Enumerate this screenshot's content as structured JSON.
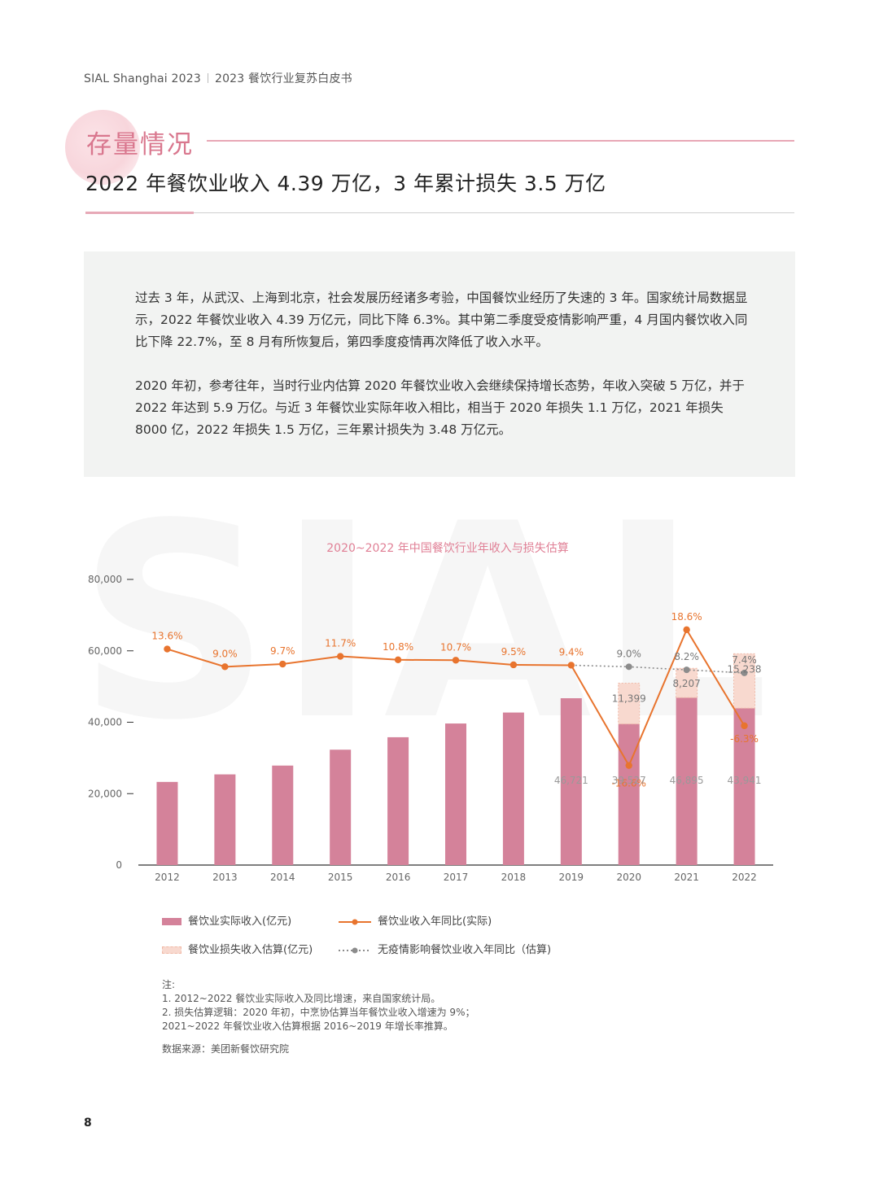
{
  "header": {
    "brand": "SIAL Shanghai 2023",
    "doc_title": "2023 餐饮行业复苏白皮书"
  },
  "section": {
    "title": "存量情况",
    "headline": "2022 年餐饮业收入 4.39 万亿，3 年累计损失 3.5 万亿"
  },
  "intro": {
    "p1": "过去 3 年，从武汉、上海到北京，社会发展历经诸多考验，中国餐饮业经历了失速的 3 年。国家统计局数据显示，2022 年餐饮业收入 4.39 万亿元，同比下降 6.3%。其中第二季度受疫情影响严重，4 月国内餐饮收入同比下降 22.7%，至 8 月有所恢复后，第四季度疫情再次降低了收入水平。",
    "p2": "2020 年初，参考往年，当时行业内估算 2020 年餐饮业收入会继续保持增长态势，年收入突破 5 万亿，并于 2022 年达到 5.9 万亿。与近 3 年餐饮业实际年收入相比，相当于 2020 年损失 1.1 万亿，2021 年损失 8000 亿，2022 年损失 1.5 万亿，三年累计损失为 3.48 万亿元。"
  },
  "watermark": "SIAL",
  "chart_data": {
    "type": "bar",
    "title": "2020~2022 年中国餐饮行业年收入与损失估算",
    "categories": [
      "2012",
      "2013",
      "2014",
      "2015",
      "2016",
      "2017",
      "2018",
      "2019",
      "2020",
      "2021",
      "2022"
    ],
    "ylim": [
      0,
      80000
    ],
    "yticks": [
      "0",
      "20,000",
      "40,000",
      "60,000",
      "80,000"
    ],
    "series": [
      {
        "name": "餐饮业实际收入(亿元)",
        "type": "bar",
        "values": [
          23283,
          25392,
          27860,
          32310,
          35799,
          39644,
          42716,
          46721,
          39527,
          46895,
          43941
        ],
        "labels": [
          "",
          "",
          "",
          "",
          "",
          "",
          "",
          "46,721",
          "39,527",
          "46,895",
          "43,941"
        ]
      },
      {
        "name": "餐饮业损失收入估算(亿元)",
        "type": "bar-stacked",
        "values": [
          null,
          null,
          null,
          null,
          null,
          null,
          null,
          null,
          11399,
          8207,
          15238
        ],
        "labels": [
          "",
          "",
          "",
          "",
          "",
          "",
          "",
          "",
          "11,399",
          "8,207",
          "15,238"
        ]
      },
      {
        "name": "餐饮业收入年同比(实际)",
        "type": "line",
        "values": [
          13.6,
          9.0,
          9.7,
          11.7,
          10.8,
          10.7,
          9.5,
          9.4,
          -16.6,
          18.6,
          -6.3
        ],
        "labels": [
          "13.6%",
          "9.0%",
          "9.7%",
          "11.7%",
          "10.8%",
          "10.7%",
          "9.5%",
          "9.4%",
          "-16.6%",
          "18.6%",
          "-6.3%"
        ]
      },
      {
        "name": "无疫情影响餐饮业收入年同比（估算)",
        "type": "line-dotted",
        "values": [
          null,
          null,
          null,
          null,
          null,
          null,
          null,
          9.4,
          9.0,
          8.2,
          7.4
        ],
        "labels": [
          "",
          "",
          "",
          "",
          "",
          "",
          "",
          "",
          "9.0%",
          "8.2%",
          "7.4%"
        ]
      }
    ]
  },
  "legend": {
    "actual": "餐饮业实际收入(亿元)",
    "yoy_actual": "餐饮业收入年同比(实际)",
    "loss": "餐饮业损失收入估算(亿元)",
    "yoy_est": "无疫情影响餐饮业收入年同比（估算)"
  },
  "notes": {
    "heading": "注:",
    "n1": "1. 2012~2022 餐饮业实际收入及同比增速，来自国家统计局。",
    "n2": "2. 损失估算逻辑：2020 年初，中烹协估算当年餐饮业收入增速为 9%；",
    "n3": "2021~2022 年餐饮业收入估算根据 2016~2019 年增长率推算。",
    "source": "数据来源：美团新餐饮研究院"
  },
  "page_number": "8",
  "colors": {
    "bar": "#d4829a",
    "loss_fill": "#f8d9cf",
    "loss_border": "#f0b9a7",
    "line_actual": "#e8742e",
    "line_est": "#8c8c8c",
    "accent": "#d9778e"
  }
}
